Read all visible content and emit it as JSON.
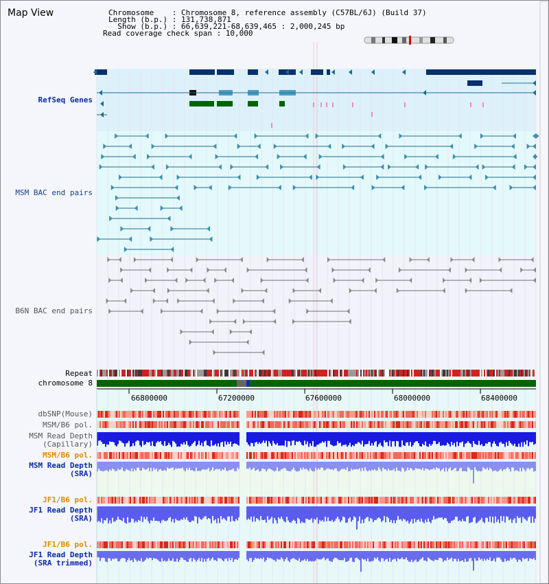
{
  "view_title": "Map View",
  "header": {
    "chromosome": "Chromosome    : Chromosome 8, reference assembly (C57BL/6J) (Build 37)",
    "length": "Length (b.p.) : 131,738,871",
    "show": "  Show (b.p.) : 66,639,221-68,639,465 : 2,000,245 bp",
    "coverage": "Read coverage check span : 10,000"
  },
  "tracks": {
    "refseq": "RefSeq Genes",
    "msm_bac": "MSM BAC end pairs",
    "b6n_bac": "B6N BAC end pairs",
    "repeat": "Repeat",
    "chromosome": "chromosome 8",
    "dbsnp": "dbSNP(Mouse)",
    "msm_b6_pol": "MSM/B6 pol.",
    "msm_depth_cap1": "MSM Read Depth",
    "msm_depth_cap2": "(Capillary)",
    "msm_b6_pol2": "MSM/B6 pol.",
    "msm_depth_sra1": "MSM Read Depth",
    "msm_depth_sra2": "(SRA)",
    "jf1_b6_pol": "JF1/B6 pol.",
    "jf1_depth_sra1": "JF1 Read Depth",
    "jf1_depth_sra2": "(SRA)",
    "jf1_b6_pol2": "JF1/B6 pol.",
    "jf1_depth_trim1": "JF1 Read Depth",
    "jf1_depth_trim2": "(SRA trimmed)"
  },
  "axis": {
    "ticks": [
      "66800000",
      "67200000",
      "67600000",
      "68000000",
      "68400000"
    ]
  },
  "colors": {
    "refseq_bg": "#ddf1fb",
    "msm_bg": "#e4f9fb",
    "b6n_bg": "#f2f3fa",
    "lower_bg": "#e8f8f8",
    "navy": "#08306b",
    "teal": "#1e6c8c",
    "green": "#006400",
    "gray_line": "#707070"
  }
}
